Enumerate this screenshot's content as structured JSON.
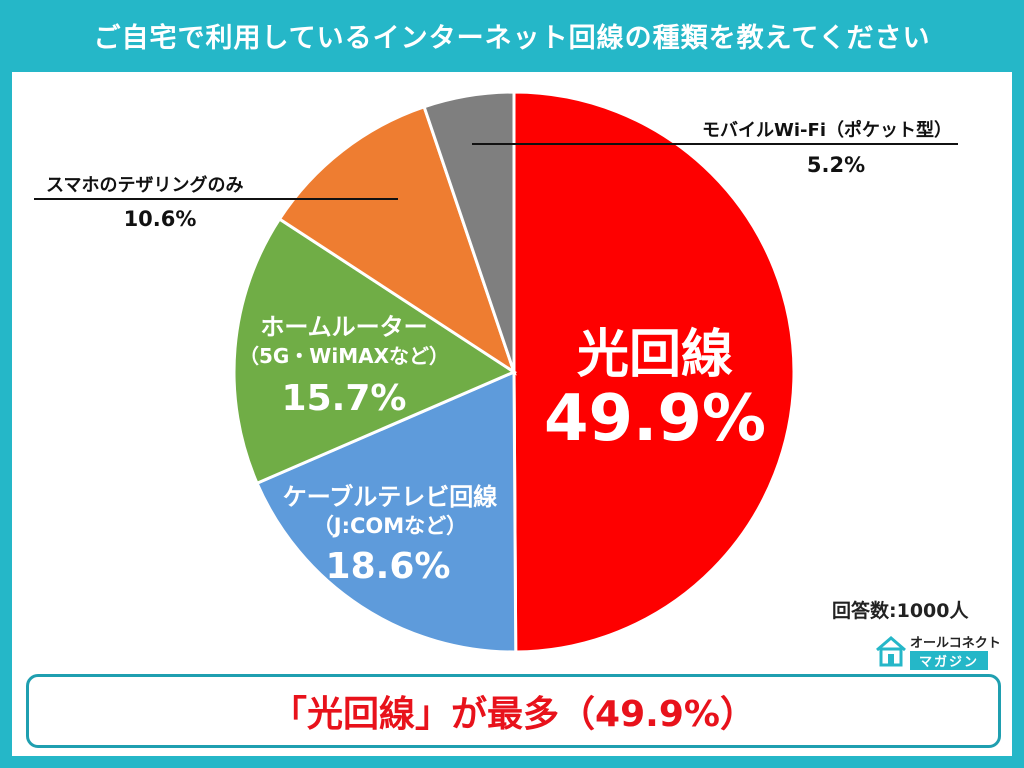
{
  "header": {
    "title": "ご自宅で利用しているインターネット回線の種類を教えてください"
  },
  "chart_data": {
    "type": "pie",
    "title": "ご自宅で利用しているインターネット回線の種類を教えてください",
    "slices": [
      {
        "label": "光回線",
        "value": 49.9,
        "value_label": "49.9%",
        "color": "#fe0000"
      },
      {
        "label": "ケーブルテレビ回線",
        "sublabel": "（J:COMなど）",
        "value": 18.6,
        "value_label": "18.6%",
        "color": "#5e9bdb"
      },
      {
        "label": "ホームルーター",
        "sublabel": "（5G・WiMAXなど）",
        "value": 15.7,
        "value_label": "15.7%",
        "color": "#70ad46"
      },
      {
        "label": "スマホのテザリングのみ",
        "value": 10.6,
        "value_label": "10.6%",
        "color": "#ee7d31"
      },
      {
        "label": "モバイルWi-Fi（ポケット型）",
        "value": 5.2,
        "value_label": "5.2%",
        "color": "#7f7f7f"
      }
    ]
  },
  "footer": {
    "respondents": "回答数:1000人",
    "conclusion": "「光回線」が最多（49.9%）",
    "logo_top": "オールコネクト",
    "logo_bottom": "マガジン"
  }
}
